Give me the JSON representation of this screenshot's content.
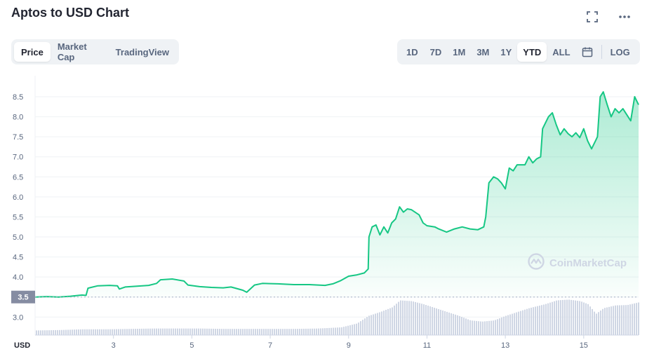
{
  "header": {
    "title": "Aptos to USD Chart",
    "fullscreen_icon": "expand-icon",
    "more_icon": "more-horizontal-icon"
  },
  "tabs": [
    {
      "label": "Price",
      "active": true
    },
    {
      "label": "Market Cap",
      "active": false
    },
    {
      "label": "TradingView",
      "active": false
    }
  ],
  "ranges": [
    {
      "label": "1D",
      "active": false
    },
    {
      "label": "7D",
      "active": false
    },
    {
      "label": "1M",
      "active": false
    },
    {
      "label": "3M",
      "active": false
    },
    {
      "label": "1Y",
      "active": false
    },
    {
      "label": "YTD",
      "active": true
    },
    {
      "label": "ALL",
      "active": false
    }
  ],
  "calendar_icon": "calendar-icon",
  "log_label": "LOG",
  "watermark": "CoinMarketCap",
  "colors": {
    "line": "#16c784",
    "area_top": "#16c784",
    "volume": "#cfd6e4",
    "grid": "#eff2f5",
    "badge_bg": "#858ca2",
    "ref_line": "#a6b0c3",
    "axis_text": "#58667e"
  },
  "chart_data": {
    "type": "area",
    "title": "Aptos to USD Chart",
    "xlabel": "",
    "ylabel": "",
    "currency_label": "USD",
    "x_ticks": [
      3,
      5,
      7,
      9,
      11,
      13,
      15
    ],
    "y_ticks": [
      3.0,
      3.5,
      4.0,
      4.5,
      5.0,
      5.5,
      6.0,
      6.5,
      7.0,
      7.5,
      8.0,
      8.5
    ],
    "y_tick_labels": [
      "3.0",
      "",
      "4.0",
      "4.5",
      "5.0",
      "5.5",
      "6.0",
      "6.5",
      "7.0",
      "7.5",
      "8.0",
      "8.5"
    ],
    "xlim": [
      1.0,
      16.4
    ],
    "ylim": [
      2.55,
      8.85
    ],
    "reference_value": 3.5,
    "reference_label": "3.5",
    "grid": true,
    "series": [
      {
        "type": "line",
        "points": [
          [
            1.0,
            3.5
          ],
          [
            1.3,
            3.51
          ],
          [
            1.6,
            3.5
          ],
          [
            1.9,
            3.52
          ],
          [
            2.2,
            3.55
          ],
          [
            2.3,
            3.54
          ],
          [
            2.35,
            3.72
          ],
          [
            2.6,
            3.78
          ],
          [
            2.9,
            3.79
          ],
          [
            3.1,
            3.78
          ],
          [
            3.15,
            3.7
          ],
          [
            3.3,
            3.75
          ],
          [
            3.6,
            3.77
          ],
          [
            3.9,
            3.79
          ],
          [
            4.1,
            3.84
          ],
          [
            4.2,
            3.93
          ],
          [
            4.5,
            3.95
          ],
          [
            4.8,
            3.9
          ],
          [
            4.9,
            3.8
          ],
          [
            5.2,
            3.76
          ],
          [
            5.5,
            3.74
          ],
          [
            5.8,
            3.73
          ],
          [
            6.0,
            3.75
          ],
          [
            6.3,
            3.67
          ],
          [
            6.4,
            3.62
          ],
          [
            6.6,
            3.8
          ],
          [
            6.8,
            3.84
          ],
          [
            7.2,
            3.83
          ],
          [
            7.6,
            3.81
          ],
          [
            8.0,
            3.81
          ],
          [
            8.4,
            3.79
          ],
          [
            8.6,
            3.83
          ],
          [
            8.8,
            3.91
          ],
          [
            9.0,
            4.02
          ],
          [
            9.2,
            4.05
          ],
          [
            9.4,
            4.1
          ],
          [
            9.5,
            4.2
          ],
          [
            9.52,
            5.0
          ],
          [
            9.6,
            5.25
          ],
          [
            9.7,
            5.3
          ],
          [
            9.8,
            5.05
          ],
          [
            9.9,
            5.25
          ],
          [
            10.0,
            5.1
          ],
          [
            10.1,
            5.35
          ],
          [
            10.2,
            5.45
          ],
          [
            10.3,
            5.75
          ],
          [
            10.4,
            5.62
          ],
          [
            10.5,
            5.7
          ],
          [
            10.6,
            5.68
          ],
          [
            10.8,
            5.55
          ],
          [
            10.9,
            5.35
          ],
          [
            11.0,
            5.28
          ],
          [
            11.2,
            5.25
          ],
          [
            11.3,
            5.2
          ],
          [
            11.5,
            5.12
          ],
          [
            11.7,
            5.2
          ],
          [
            11.9,
            5.25
          ],
          [
            12.1,
            5.2
          ],
          [
            12.3,
            5.18
          ],
          [
            12.45,
            5.25
          ],
          [
            12.5,
            5.5
          ],
          [
            12.58,
            6.35
          ],
          [
            12.7,
            6.5
          ],
          [
            12.8,
            6.45
          ],
          [
            12.9,
            6.35
          ],
          [
            13.0,
            6.2
          ],
          [
            13.1,
            6.72
          ],
          [
            13.2,
            6.65
          ],
          [
            13.3,
            6.8
          ],
          [
            13.5,
            6.8
          ],
          [
            13.6,
            7.0
          ],
          [
            13.7,
            6.85
          ],
          [
            13.8,
            6.95
          ],
          [
            13.9,
            7.0
          ],
          [
            13.95,
            7.7
          ],
          [
            14.1,
            8.0
          ],
          [
            14.2,
            8.1
          ],
          [
            14.3,
            7.8
          ],
          [
            14.4,
            7.55
          ],
          [
            14.5,
            7.7
          ],
          [
            14.6,
            7.58
          ],
          [
            14.7,
            7.5
          ],
          [
            14.8,
            7.6
          ],
          [
            14.9,
            7.48
          ],
          [
            15.0,
            7.7
          ],
          [
            15.1,
            7.4
          ],
          [
            15.2,
            7.2
          ],
          [
            15.3,
            7.4
          ],
          [
            15.35,
            7.5
          ],
          [
            15.42,
            8.5
          ],
          [
            15.5,
            8.62
          ],
          [
            15.6,
            8.3
          ],
          [
            15.7,
            8.0
          ],
          [
            15.8,
            8.2
          ],
          [
            15.9,
            8.1
          ],
          [
            16.0,
            8.2
          ],
          [
            16.1,
            8.05
          ],
          [
            16.2,
            7.9
          ],
          [
            16.3,
            8.5
          ],
          [
            16.4,
            8.3
          ]
        ]
      },
      {
        "type": "volume",
        "points": [
          [
            1.0,
            0.12
          ],
          [
            1.6,
            0.13
          ],
          [
            2.2,
            0.15
          ],
          [
            2.8,
            0.15
          ],
          [
            3.4,
            0.16
          ],
          [
            4.0,
            0.17
          ],
          [
            4.6,
            0.17
          ],
          [
            5.2,
            0.17
          ],
          [
            5.8,
            0.16
          ],
          [
            6.4,
            0.16
          ],
          [
            7.0,
            0.16
          ],
          [
            7.6,
            0.16
          ],
          [
            8.2,
            0.17
          ],
          [
            8.8,
            0.2
          ],
          [
            9.2,
            0.3
          ],
          [
            9.5,
            0.5
          ],
          [
            9.8,
            0.6
          ],
          [
            10.1,
            0.72
          ],
          [
            10.3,
            0.9
          ],
          [
            10.6,
            0.88
          ],
          [
            10.9,
            0.8
          ],
          [
            11.2,
            0.7
          ],
          [
            11.5,
            0.6
          ],
          [
            11.8,
            0.5
          ],
          [
            12.1,
            0.38
          ],
          [
            12.4,
            0.35
          ],
          [
            12.7,
            0.38
          ],
          [
            13.0,
            0.5
          ],
          [
            13.3,
            0.6
          ],
          [
            13.6,
            0.7
          ],
          [
            14.0,
            0.8
          ],
          [
            14.3,
            0.9
          ],
          [
            14.6,
            0.92
          ],
          [
            14.9,
            0.88
          ],
          [
            15.1,
            0.8
          ],
          [
            15.3,
            0.55
          ],
          [
            15.5,
            0.7
          ],
          [
            15.8,
            0.77
          ],
          [
            16.1,
            0.78
          ],
          [
            16.4,
            0.85
          ]
        ]
      }
    ]
  }
}
